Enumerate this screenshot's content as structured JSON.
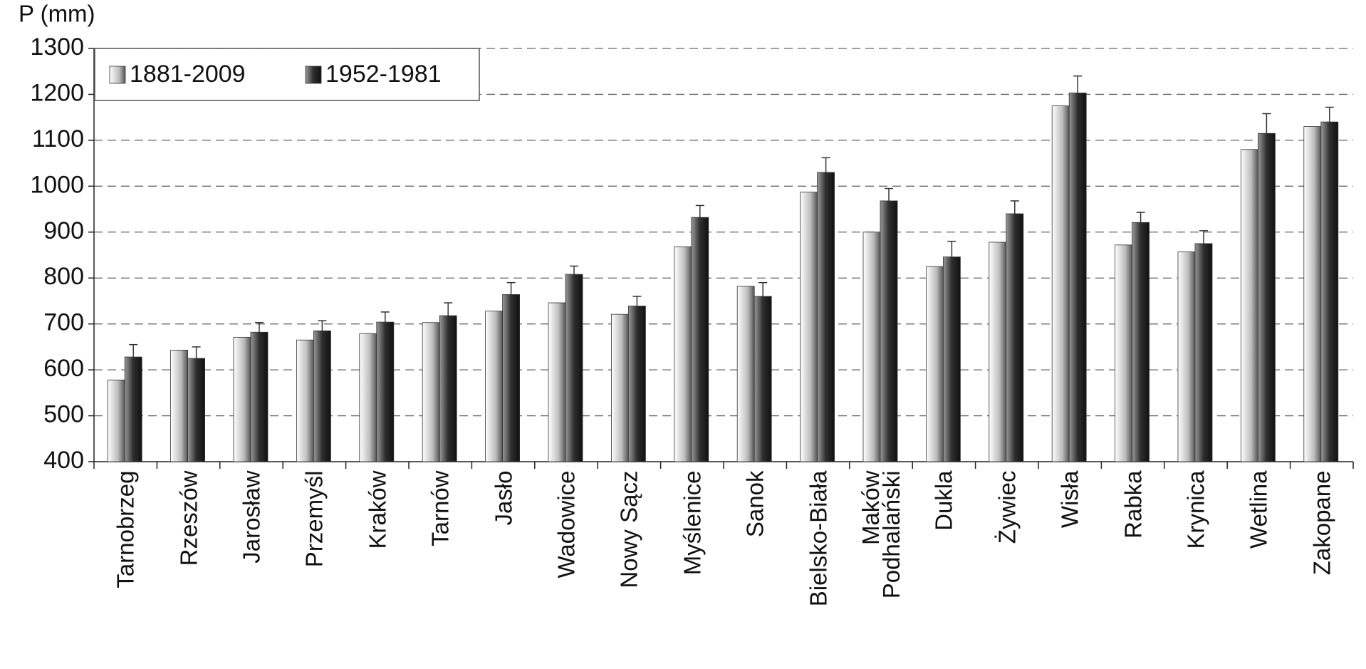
{
  "chart_data": {
    "type": "bar",
    "y_label": "P (mm)",
    "categories": [
      "Tarnobrzeg",
      "Rzeszów",
      "Jarosław",
      "Przemyśl",
      "Kraków",
      "Tarnów",
      "Jasło",
      "Wadowice",
      "Nowy Sącz",
      "Myślenice",
      "Sanok",
      "Bielsko-Biała",
      "Maków Podhalański",
      "Dukla",
      "Żywiec",
      "Wisła",
      "Rabka",
      "Krynica",
      "Wetlina",
      "Zakopane"
    ],
    "series": [
      {
        "name": "1881-2009",
        "color": "#bdbdbd",
        "values": [
          578,
          643,
          671,
          665,
          679,
          703,
          728,
          746,
          721,
          868,
          782,
          987,
          900,
          825,
          878,
          1175,
          872,
          857,
          1080,
          1130
        ]
      },
      {
        "name": "1952-1981",
        "color": "#2e2e2e",
        "values": [
          628,
          625,
          682,
          685,
          704,
          718,
          764,
          808,
          739,
          932,
          760,
          1030,
          968,
          846,
          940,
          1203,
          921,
          875,
          1115,
          1140
        ],
        "errors": [
          27,
          25,
          21,
          22,
          22,
          28,
          26,
          18,
          21,
          26,
          30,
          32,
          27,
          34,
          28,
          37,
          22,
          28,
          43,
          32
        ]
      }
    ],
    "ylim": [
      400,
      1300
    ],
    "yticks": [
      400,
      500,
      600,
      700,
      800,
      900,
      1000,
      1100,
      1200,
      1300
    ],
    "grid": true,
    "legend": "top-left"
  }
}
